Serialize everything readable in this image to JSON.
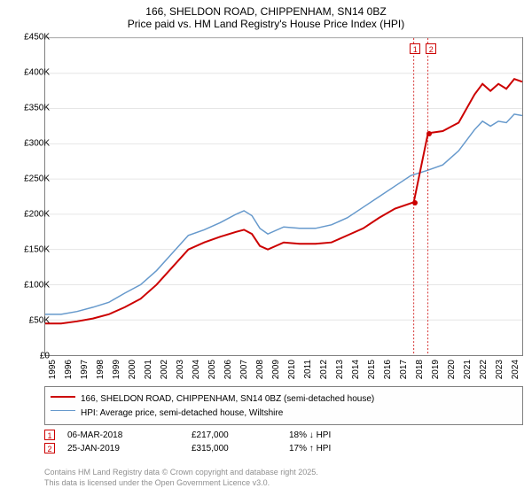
{
  "title": {
    "line1": "166, SHELDON ROAD, CHIPPENHAM, SN14 0BZ",
    "line2": "Price paid vs. HM Land Registry's House Price Index (HPI)"
  },
  "chart": {
    "type": "line",
    "background_color": "#ffffff",
    "grid_color": "#e6e6e6",
    "border_color": "#7f7f7f",
    "y_axis": {
      "min": 0,
      "max": 450000,
      "step": 50000,
      "tick_labels": [
        "£0",
        "£50K",
        "£100K",
        "£150K",
        "£200K",
        "£250K",
        "£300K",
        "£350K",
        "£400K",
        "£450K"
      ]
    },
    "x_axis": {
      "min": 1995,
      "max": 2025,
      "tick_labels": [
        "1995",
        "1996",
        "1997",
        "1998",
        "1999",
        "2000",
        "2001",
        "2002",
        "2003",
        "2004",
        "2005",
        "2006",
        "2007",
        "2008",
        "2009",
        "2010",
        "2011",
        "2012",
        "2013",
        "2014",
        "2015",
        "2016",
        "2017",
        "2018",
        "2019",
        "2020",
        "2021",
        "2022",
        "2023",
        "2024"
      ]
    },
    "series": [
      {
        "name": "red",
        "label": "166, SHELDON ROAD, CHIPPENHAM, SN14 0BZ (semi-detached house)",
        "color": "#cc0000",
        "line_width": 2,
        "data": [
          [
            1995,
            45000
          ],
          [
            1996,
            45000
          ],
          [
            1997,
            48000
          ],
          [
            1998,
            52000
          ],
          [
            1999,
            58000
          ],
          [
            2000,
            68000
          ],
          [
            2001,
            80000
          ],
          [
            2002,
            100000
          ],
          [
            2003,
            125000
          ],
          [
            2004,
            150000
          ],
          [
            2005,
            160000
          ],
          [
            2006,
            168000
          ],
          [
            2007,
            175000
          ],
          [
            2007.5,
            178000
          ],
          [
            2008,
            172000
          ],
          [
            2008.5,
            155000
          ],
          [
            2009,
            150000
          ],
          [
            2010,
            160000
          ],
          [
            2011,
            158000
          ],
          [
            2012,
            158000
          ],
          [
            2013,
            160000
          ],
          [
            2014,
            170000
          ],
          [
            2015,
            180000
          ],
          [
            2016,
            195000
          ],
          [
            2017,
            208000
          ],
          [
            2018.18,
            217000
          ],
          [
            2019.07,
            315000
          ],
          [
            2020,
            318000
          ],
          [
            2021,
            330000
          ],
          [
            2022,
            370000
          ],
          [
            2022.5,
            385000
          ],
          [
            2023,
            375000
          ],
          [
            2023.5,
            385000
          ],
          [
            2024,
            378000
          ],
          [
            2024.5,
            392000
          ],
          [
            2025,
            388000
          ]
        ]
      },
      {
        "name": "blue",
        "label": "HPI: Average price, semi-detached house, Wiltshire",
        "color": "#6699cc",
        "line_width": 1.5,
        "data": [
          [
            1995,
            58000
          ],
          [
            1996,
            58000
          ],
          [
            1997,
            62000
          ],
          [
            1998,
            68000
          ],
          [
            1999,
            75000
          ],
          [
            2000,
            88000
          ],
          [
            2001,
            100000
          ],
          [
            2002,
            120000
          ],
          [
            2003,
            145000
          ],
          [
            2004,
            170000
          ],
          [
            2005,
            178000
          ],
          [
            2006,
            188000
          ],
          [
            2007,
            200000
          ],
          [
            2007.5,
            205000
          ],
          [
            2008,
            198000
          ],
          [
            2008.5,
            180000
          ],
          [
            2009,
            172000
          ],
          [
            2010,
            182000
          ],
          [
            2011,
            180000
          ],
          [
            2012,
            180000
          ],
          [
            2013,
            185000
          ],
          [
            2014,
            195000
          ],
          [
            2015,
            210000
          ],
          [
            2016,
            225000
          ],
          [
            2017,
            240000
          ],
          [
            2018,
            255000
          ],
          [
            2019,
            262000
          ],
          [
            2020,
            270000
          ],
          [
            2021,
            290000
          ],
          [
            2022,
            320000
          ],
          [
            2022.5,
            332000
          ],
          [
            2023,
            325000
          ],
          [
            2023.5,
            332000
          ],
          [
            2024,
            330000
          ],
          [
            2024.5,
            342000
          ],
          [
            2025,
            340000
          ]
        ]
      }
    ],
    "markers": [
      {
        "id": "1",
        "year": 2018.18,
        "value": 217000
      },
      {
        "id": "2",
        "year": 2019.07,
        "value": 315000
      }
    ]
  },
  "legend": {
    "items": [
      {
        "color": "#cc0000",
        "label": "166, SHELDON ROAD, CHIPPENHAM, SN14 0BZ (semi-detached house)"
      },
      {
        "color": "#6699cc",
        "label": "HPI: Average price, semi-detached house, Wiltshire"
      }
    ]
  },
  "sales": [
    {
      "id": "1",
      "date": "06-MAR-2018",
      "price": "£217,000",
      "pct": "18% ↓ HPI"
    },
    {
      "id": "2",
      "date": "25-JAN-2019",
      "price": "£315,000",
      "pct": "17% ↑ HPI"
    }
  ],
  "footer": {
    "line1": "Contains HM Land Registry data © Crown copyright and database right 2025.",
    "line2": "This data is licensed under the Open Government Licence v3.0."
  }
}
